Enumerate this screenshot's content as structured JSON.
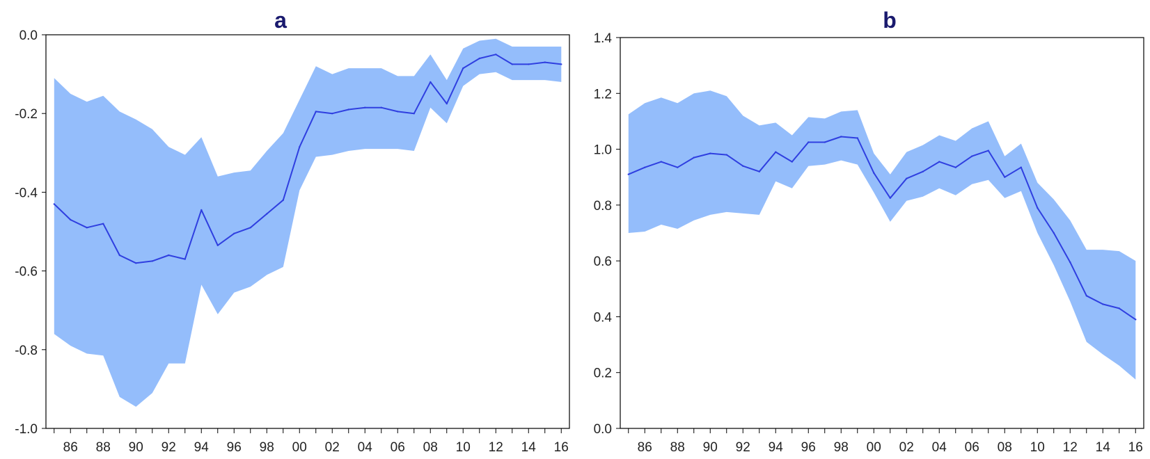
{
  "colors": {
    "band": "#94BDFB",
    "line": "#2F3FE0",
    "title": "#1A1A6E",
    "axis": "#000000"
  },
  "chart_data": [
    {
      "type": "area",
      "title": "a",
      "xlabel": "",
      "ylabel": "",
      "grid": false,
      "xlim": [
        1984.5,
        2016.5
      ],
      "ylim": [
        -1.0,
        0.0
      ],
      "y_ticks": [
        "0.0",
        "-0.2",
        "-0.4",
        "-0.6",
        "-0.8",
        "-1.0"
      ],
      "y_tick_values": [
        0.0,
        -0.2,
        -0.4,
        -0.6,
        -0.8,
        -1.0
      ],
      "x_tick_labels": [
        "86",
        "88",
        "90",
        "92",
        "94",
        "96",
        "98",
        "00",
        "02",
        "04",
        "06",
        "08",
        "10",
        "12",
        "14",
        "16"
      ],
      "x": [
        1985,
        1986,
        1987,
        1988,
        1989,
        1990,
        1991,
        1992,
        1993,
        1994,
        1995,
        1996,
        1997,
        1998,
        1999,
        2000,
        2001,
        2002,
        2003,
        2004,
        2005,
        2006,
        2007,
        2008,
        2009,
        2010,
        2011,
        2012,
        2013,
        2014,
        2015,
        2016
      ],
      "estimate": [
        -0.43,
        -0.47,
        -0.49,
        -0.48,
        -0.56,
        -0.58,
        -0.575,
        -0.56,
        -0.57,
        -0.445,
        -0.535,
        -0.505,
        -0.49,
        -0.455,
        -0.42,
        -0.285,
        -0.195,
        -0.2,
        -0.19,
        -0.185,
        -0.185,
        -0.195,
        -0.2,
        -0.12,
        -0.175,
        -0.085,
        -0.06,
        -0.05,
        -0.075,
        -0.075,
        -0.07,
        -0.075
      ],
      "upper": [
        -0.11,
        -0.15,
        -0.17,
        -0.155,
        -0.195,
        -0.215,
        -0.24,
        -0.285,
        -0.305,
        -0.26,
        -0.36,
        -0.35,
        -0.345,
        -0.295,
        -0.25,
        -0.165,
        -0.08,
        -0.1,
        -0.085,
        -0.085,
        -0.085,
        -0.105,
        -0.105,
        -0.05,
        -0.115,
        -0.035,
        -0.015,
        -0.01,
        -0.03,
        -0.03,
        -0.03,
        -0.03
      ],
      "lower": [
        -0.76,
        -0.79,
        -0.81,
        -0.815,
        -0.92,
        -0.945,
        -0.91,
        -0.835,
        -0.835,
        -0.635,
        -0.71,
        -0.655,
        -0.64,
        -0.61,
        -0.59,
        -0.395,
        -0.31,
        -0.305,
        -0.295,
        -0.29,
        -0.29,
        -0.29,
        -0.295,
        -0.185,
        -0.225,
        -0.13,
        -0.1,
        -0.095,
        -0.115,
        -0.115,
        -0.115,
        -0.12
      ]
    },
    {
      "type": "area",
      "title": "b",
      "xlabel": "",
      "ylabel": "",
      "grid": false,
      "xlim": [
        1984.5,
        2016.5
      ],
      "ylim": [
        0.0,
        1.4
      ],
      "y_ticks": [
        "1.4",
        "1.2",
        "1.0",
        "0.8",
        "0.6",
        "0.4",
        "0.2",
        "0.0"
      ],
      "y_tick_values": [
        1.4,
        1.2,
        1.0,
        0.8,
        0.6,
        0.4,
        0.2,
        0.0
      ],
      "x_tick_labels": [
        "86",
        "88",
        "90",
        "92",
        "94",
        "96",
        "98",
        "00",
        "02",
        "04",
        "06",
        "08",
        "10",
        "12",
        "14",
        "16"
      ],
      "x": [
        1985,
        1986,
        1987,
        1988,
        1989,
        1990,
        1991,
        1992,
        1993,
        1994,
        1995,
        1996,
        1997,
        1998,
        1999,
        2000,
        2001,
        2002,
        2003,
        2004,
        2005,
        2006,
        2007,
        2008,
        2009,
        2010,
        2011,
        2012,
        2013,
        2014,
        2015,
        2016
      ],
      "estimate": [
        0.91,
        0.935,
        0.955,
        0.935,
        0.97,
        0.985,
        0.98,
        0.94,
        0.92,
        0.99,
        0.955,
        1.025,
        1.025,
        1.045,
        1.04,
        0.915,
        0.825,
        0.895,
        0.92,
        0.955,
        0.935,
        0.975,
        0.995,
        0.9,
        0.935,
        0.79,
        0.7,
        0.595,
        0.475,
        0.445,
        0.43,
        0.39
      ],
      "upper": [
        1.125,
        1.165,
        1.185,
        1.165,
        1.2,
        1.21,
        1.19,
        1.12,
        1.085,
        1.095,
        1.05,
        1.115,
        1.11,
        1.135,
        1.14,
        0.985,
        0.91,
        0.99,
        1.015,
        1.05,
        1.03,
        1.075,
        1.1,
        0.975,
        1.02,
        0.88,
        0.82,
        0.745,
        0.64,
        0.64,
        0.635,
        0.6
      ],
      "lower": [
        0.7,
        0.705,
        0.73,
        0.715,
        0.745,
        0.765,
        0.775,
        0.77,
        0.765,
        0.885,
        0.86,
        0.94,
        0.945,
        0.96,
        0.945,
        0.845,
        0.74,
        0.815,
        0.83,
        0.86,
        0.835,
        0.875,
        0.89,
        0.825,
        0.85,
        0.7,
        0.585,
        0.455,
        0.31,
        0.265,
        0.225,
        0.175
      ]
    }
  ]
}
